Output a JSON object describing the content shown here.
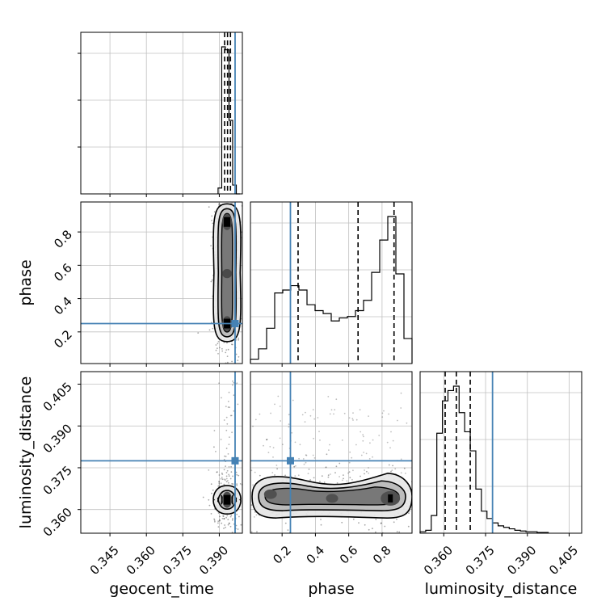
{
  "chart_data": {
    "type": "corner",
    "parameters": [
      "geocent_time",
      "phase",
      "luminosity_distance"
    ],
    "axis_labels": {
      "geocent_time": "geocent_time",
      "phase": "phase",
      "luminosity_distance": "luminosity_distance"
    },
    "ranges": {
      "geocent_time": [
        0.333,
        0.3995
      ],
      "phase": [
        0.01,
        0.98
      ],
      "luminosity_distance": [
        0.3515,
        0.4095
      ]
    },
    "ticks": {
      "geocent_time": {
        "values": [
          0.345,
          0.36,
          0.375,
          0.39
        ],
        "labels": [
          "0.345",
          "0.360",
          "0.375",
          "0.390"
        ]
      },
      "phase": {
        "values": [
          0.2,
          0.4,
          0.6,
          0.8
        ],
        "labels": [
          "0.2",
          "0.4",
          "0.6",
          "0.8"
        ]
      },
      "luminosity_distance": {
        "values": [
          0.36,
          0.375,
          0.39,
          0.405
        ],
        "labels": [
          "0.360",
          "0.375",
          "0.390",
          "0.405"
        ]
      }
    },
    "truths": {
      "geocent_time": 0.3965,
      "phase": 0.25,
      "luminosity_distance": 0.3775
    },
    "colors": {
      "truth": "#4682b4",
      "hist": "#000000",
      "grid": "#c0c0c0"
    },
    "grid": true,
    "histograms": {
      "geocent_time": {
        "edges": [
          0.3895,
          0.391,
          0.3925,
          0.394,
          0.3955,
          0.397,
          0.3985
        ],
        "counts": [
          0.04,
          1.0,
          0.98,
          0.5,
          0.06,
          0.0
        ],
        "quantiles": [
          0.3922,
          0.3934,
          0.3946
        ]
      },
      "phase": {
        "edges": [
          0.01,
          0.0585,
          0.107,
          0.1555,
          0.204,
          0.2525,
          0.301,
          0.3495,
          0.398,
          0.4465,
          0.495,
          0.5435,
          0.592,
          0.6405,
          0.689,
          0.7375,
          0.786,
          0.8345,
          0.883,
          0.9315,
          0.98
        ],
        "counts": [
          0.03,
          0.1,
          0.24,
          0.48,
          0.5,
          0.53,
          0.5,
          0.4,
          0.36,
          0.34,
          0.29,
          0.31,
          0.32,
          0.36,
          0.43,
          0.62,
          0.84,
          1.0,
          0.61,
          0.17
        ],
        "quantiles": [
          0.296,
          0.656,
          0.872
        ]
      },
      "luminosity_distance": {
        "edges": [
          0.3515,
          0.3535,
          0.3555,
          0.3575,
          0.3595,
          0.3615,
          0.3635,
          0.3655,
          0.3675,
          0.3695,
          0.3715,
          0.3735,
          0.3755,
          0.3775,
          0.3795,
          0.3815,
          0.3835,
          0.3855,
          0.3875,
          0.3895,
          0.3915,
          0.3935,
          0.3955,
          0.3975
        ],
        "counts": [
          0.01,
          0.02,
          0.12,
          0.68,
          0.9,
          0.97,
          1.0,
          0.82,
          0.69,
          0.56,
          0.3,
          0.15,
          0.1,
          0.07,
          0.05,
          0.04,
          0.03,
          0.02,
          0.015,
          0.01,
          0.01,
          0.005,
          0.005
        ],
        "quantiles": [
          0.3605,
          0.3645,
          0.3695
        ]
      }
    },
    "density_centers": {
      "phase_vs_geocent_time": [
        {
          "x": 0.3932,
          "y": 0.86,
          "weight": 1.0
        },
        {
          "x": 0.3935,
          "y": 0.55,
          "weight": 0.45
        },
        {
          "x": 0.3932,
          "y": 0.25,
          "weight": 0.9
        }
      ],
      "luminosity_distance_vs_geocent_time": [
        {
          "x": 0.3932,
          "y": 0.3635,
          "weight": 1.0
        }
      ],
      "luminosity_distance_vs_phase": [
        {
          "x": 0.13,
          "y": 0.3655,
          "weight": 0.55
        },
        {
          "x": 0.5,
          "y": 0.364,
          "weight": 0.5
        },
        {
          "x": 0.85,
          "y": 0.364,
          "weight": 1.0
        }
      ]
    }
  }
}
